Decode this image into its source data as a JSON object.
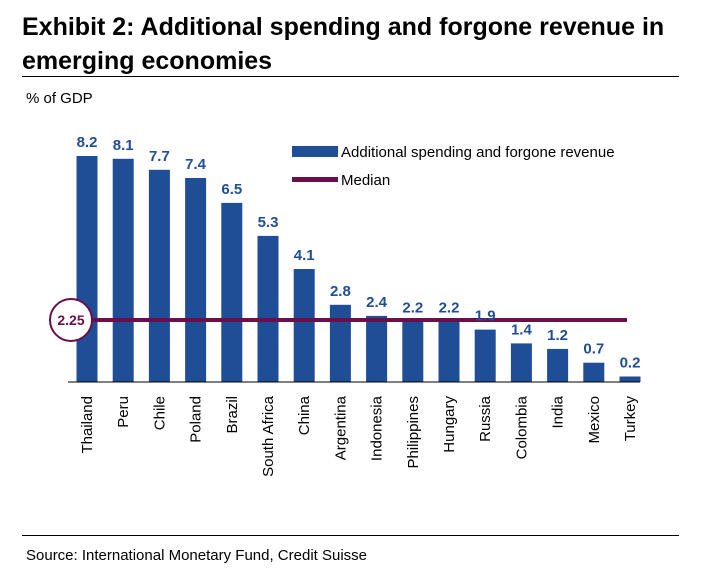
{
  "title": "Exhibit 2: Additional spending and forgone revenue in emerging economies",
  "source": "Source: International Monetary Fund, Credit Suisse",
  "colors": {
    "bar": "#1f4e96",
    "median": "#6b0f4a",
    "value_label": "#1f4e96",
    "axis": "#000000"
  },
  "chart_data": {
    "type": "bar",
    "ylabel": "% of GDP",
    "categories": [
      "Thailand",
      "Peru",
      "Chile",
      "Poland",
      "Brazil",
      "South Africa",
      "China",
      "Argentina",
      "Indonesia",
      "Philippines",
      "Hungary",
      "Russia",
      "Colombia",
      "India",
      "Mexico",
      "Turkey"
    ],
    "series": [
      {
        "name": "Additional spending and forgone revenue",
        "values": [
          8.2,
          8.1,
          7.7,
          7.4,
          6.5,
          5.3,
          4.1,
          2.8,
          2.4,
          2.2,
          2.2,
          1.9,
          1.4,
          1.2,
          0.7,
          0.2
        ]
      }
    ],
    "value_labels": [
      "8.2",
      "8.1",
      "7.7",
      "7.4",
      "6.5",
      "5.3",
      "4.1",
      "2.8",
      "2.4",
      "2.2",
      "2.2",
      "1.9",
      "1.4",
      "1.2",
      "0.7",
      "0.2"
    ],
    "median": {
      "name": "Median",
      "value": 2.25,
      "label": "2.25"
    },
    "ylim": [
      0,
      8.2
    ],
    "legend_position": "top-right",
    "grid": false
  }
}
